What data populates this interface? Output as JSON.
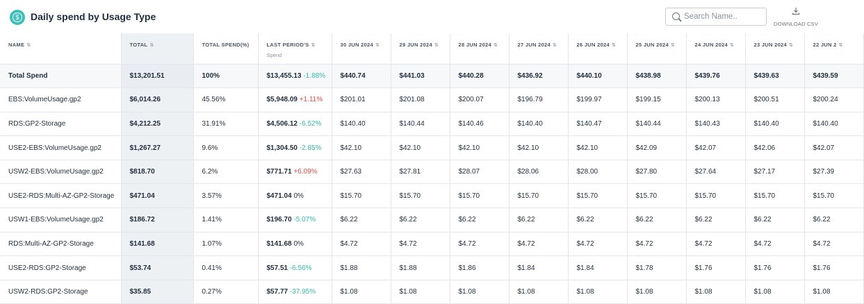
{
  "header": {
    "title": "Daily spend by Usage Type",
    "search_placeholder": "Search Name..",
    "download_label": "DOWNLOAD CSV"
  },
  "columns": {
    "name": "NAME",
    "total": "TOTAL",
    "total_pct": "TOTAL SPEND(%)",
    "last_period": "LAST PERIOD'S",
    "last_period_sub": "Spend",
    "dates": [
      "30 JUN 2024",
      "29 JUN 2024",
      "28 JUN 2024",
      "27 JUN 2024",
      "26 JUN 2024",
      "25 JUN 2024",
      "24 JUN 2024",
      "23 JUN 2024",
      "22 JUN 2"
    ]
  },
  "rows": [
    {
      "name": "Total Spend",
      "total": "$13,201.51",
      "pct": "100%",
      "last": "$13,455.13",
      "change": "-1.88%",
      "dir": "down",
      "days": [
        "$440.74",
        "$441.03",
        "$440.28",
        "$436.92",
        "$440.10",
        "$438.98",
        "$439.76",
        "$439.63",
        "$439.59"
      ]
    },
    {
      "name": "EBS:VolumeUsage.gp2",
      "total": "$6,014.26",
      "pct": "45.56%",
      "last": "$5,948.09",
      "change": "+1.11%",
      "dir": "up",
      "days": [
        "$201.01",
        "$201.08",
        "$200.07",
        "$196.79",
        "$199.97",
        "$199.15",
        "$200.13",
        "$200.51",
        "$200.24"
      ]
    },
    {
      "name": "RDS:GP2-Storage",
      "total": "$4,212.25",
      "pct": "31.91%",
      "last": "$4,506.12",
      "change": "-6.52%",
      "dir": "down",
      "days": [
        "$140.40",
        "$140.44",
        "$140.46",
        "$140.40",
        "$140.47",
        "$140.44",
        "$140.43",
        "$140.40",
        "$140.40"
      ]
    },
    {
      "name": "USE2-EBS:VolumeUsage.gp2",
      "total": "$1,267.27",
      "pct": "9.6%",
      "last": "$1,304.50",
      "change": "-2.85%",
      "dir": "down",
      "days": [
        "$42.10",
        "$42.10",
        "$42.10",
        "$42.10",
        "$42.10",
        "$42.09",
        "$42.07",
        "$42.06",
        "$42.07"
      ]
    },
    {
      "name": "USW2-EBS:VolumeUsage.gp2",
      "total": "$818.70",
      "pct": "6.2%",
      "last": "$771.71",
      "change": "+6.09%",
      "dir": "up",
      "days": [
        "$27.63",
        "$27.81",
        "$28.07",
        "$28.06",
        "$28.00",
        "$27.80",
        "$27.64",
        "$27.17",
        "$27.39"
      ]
    },
    {
      "name": "USE2-RDS:Multi-AZ-GP2-Storage",
      "total": "$471.04",
      "pct": "3.57%",
      "last": "$471.04",
      "change": "0%",
      "dir": "neutral",
      "days": [
        "$15.70",
        "$15.70",
        "$15.70",
        "$15.70",
        "$15.70",
        "$15.70",
        "$15.70",
        "$15.70",
        "$15.70"
      ]
    },
    {
      "name": "USW1-EBS:VolumeUsage.gp2",
      "total": "$186.72",
      "pct": "1.41%",
      "last": "$196.70",
      "change": "-5.07%",
      "dir": "down",
      "days": [
        "$6.22",
        "$6.22",
        "$6.22",
        "$6.22",
        "$6.22",
        "$6.22",
        "$6.22",
        "$6.22",
        "$6.22"
      ]
    },
    {
      "name": "RDS:Multi-AZ-GP2-Storage",
      "total": "$141.68",
      "pct": "1.07%",
      "last": "$141.68",
      "change": "0%",
      "dir": "neutral",
      "days": [
        "$4.72",
        "$4.72",
        "$4.72",
        "$4.72",
        "$4.72",
        "$4.72",
        "$4.72",
        "$4.72",
        "$4.72"
      ]
    },
    {
      "name": "USE2-RDS:GP2-Storage",
      "total": "$53.74",
      "pct": "0.41%",
      "last": "$57.51",
      "change": "-6.56%",
      "dir": "down",
      "days": [
        "$1.88",
        "$1.88",
        "$1.86",
        "$1.84",
        "$1.84",
        "$1.78",
        "$1.76",
        "$1.76",
        "$1.76"
      ]
    },
    {
      "name": "USW2-RDS:GP2-Storage",
      "total": "$35.85",
      "pct": "0.27%",
      "last": "$57.77",
      "change": "-37.95%",
      "dir": "down",
      "days": [
        "$1.08",
        "$1.08",
        "$1.08",
        "$1.08",
        "$1.08",
        "$1.08",
        "$1.08",
        "$1.08",
        "$1.08"
      ]
    }
  ],
  "icons": {
    "title": "dollar-circle-icon",
    "search": "search-icon",
    "download": "download-icon",
    "sort": "sort-icon"
  },
  "colors": {
    "accent": "#3cc0b9",
    "increase": "#e04b4b",
    "decrease": "#34b8a8"
  }
}
